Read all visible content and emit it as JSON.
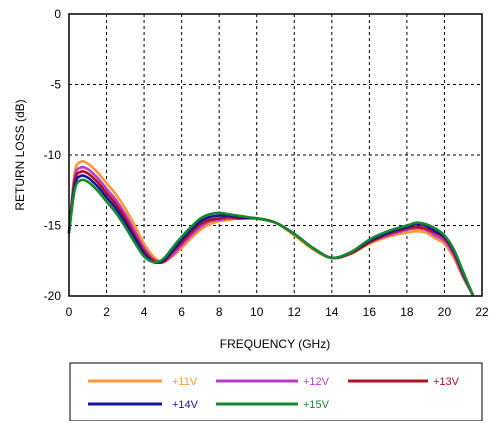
{
  "chart_data": {
    "type": "line",
    "xlabel": "FREQUENCY (GHz)",
    "ylabel": "RETURN LOSS (dB)",
    "xlim": [
      0,
      22
    ],
    "ylim": [
      -20,
      0
    ],
    "x_ticks": [
      "0",
      "2",
      "4",
      "6",
      "8",
      "10",
      "12",
      "14",
      "16",
      "18",
      "20",
      "22"
    ],
    "y_ticks": [
      "0",
      "-5",
      "-10",
      "-15",
      "-20"
    ],
    "grid": "dashed",
    "legend_position": "bottom",
    "series": [
      {
        "name": "+11V",
        "color": "#ff9933",
        "x": [
          0,
          0.3,
          0.6,
          1,
          1.5,
          2,
          2.5,
          3,
          3.5,
          4,
          4.5,
          5,
          5.5,
          6,
          6.5,
          7,
          7.5,
          8,
          8.5,
          9,
          10,
          11,
          12,
          13,
          14,
          15,
          16,
          17,
          18,
          18.5,
          19,
          19.5,
          20,
          20.5,
          21,
          21.5
        ],
        "values": [
          -15.5,
          -11.3,
          -10.5,
          -10.6,
          -11.2,
          -12,
          -12.8,
          -13.8,
          -15,
          -16.3,
          -17.2,
          -17.6,
          -17.2,
          -16.6,
          -15.9,
          -15.3,
          -14.9,
          -14.7,
          -14.6,
          -14.5,
          -14.5,
          -14.8,
          -15.7,
          -16.7,
          -17.3,
          -17,
          -16.3,
          -15.8,
          -15.5,
          -15.4,
          -15.5,
          -15.9,
          -16.3,
          -17.3,
          -18.7,
          -19.9
        ]
      },
      {
        "name": "+12V",
        "color": "#b83cc8",
        "x": [
          0,
          0.3,
          0.6,
          1,
          1.5,
          2,
          2.5,
          3,
          3.5,
          4,
          4.5,
          5,
          5.5,
          6,
          6.5,
          7,
          7.5,
          8,
          8.5,
          9,
          10,
          11,
          12,
          13,
          14,
          15,
          16,
          17,
          18,
          18.5,
          19,
          19.5,
          20,
          20.5,
          21,
          21.5
        ],
        "values": [
          -15.5,
          -11.6,
          -10.9,
          -11,
          -11.6,
          -12.4,
          -13.2,
          -14.2,
          -15.4,
          -16.6,
          -17.4,
          -17.6,
          -17.1,
          -16.4,
          -15.7,
          -15.1,
          -14.7,
          -14.6,
          -14.5,
          -14.5,
          -14.5,
          -14.8,
          -15.6,
          -16.6,
          -17.3,
          -17,
          -16.2,
          -15.7,
          -15.3,
          -15.2,
          -15.3,
          -15.7,
          -16.1,
          -17.1,
          -18.6,
          -19.9
        ]
      },
      {
        "name": "+13V",
        "color": "#b01020",
        "x": [
          0,
          0.3,
          0.6,
          1,
          1.5,
          2,
          2.5,
          3,
          3.5,
          4,
          4.5,
          5,
          5.5,
          6,
          6.5,
          7,
          7.5,
          8,
          8.5,
          9,
          10,
          11,
          12,
          13,
          14,
          15,
          16,
          17,
          18,
          18.5,
          19,
          19.5,
          20,
          20.5,
          21,
          21.5
        ],
        "values": [
          -15.5,
          -11.9,
          -11.2,
          -11.3,
          -11.9,
          -12.7,
          -13.5,
          -14.5,
          -15.7,
          -16.8,
          -17.5,
          -17.6,
          -16.9,
          -16.2,
          -15.5,
          -14.9,
          -14.6,
          -14.5,
          -14.4,
          -14.5,
          -14.5,
          -14.8,
          -15.6,
          -16.6,
          -17.3,
          -17,
          -16.2,
          -15.6,
          -15.2,
          -15.1,
          -15.2,
          -15.5,
          -15.9,
          -16.9,
          -18.5,
          -19.9
        ]
      },
      {
        "name": "+14V",
        "color": "#1414a0",
        "x": [
          0,
          0.3,
          0.6,
          1,
          1.5,
          2,
          2.5,
          3,
          3.5,
          4,
          4.5,
          5,
          5.5,
          6,
          6.5,
          7,
          7.5,
          8,
          8.5,
          9,
          10,
          11,
          12,
          13,
          14,
          15,
          16,
          17,
          18,
          18.5,
          19,
          19.5,
          20,
          20.5,
          21,
          21.5
        ],
        "values": [
          -15.5,
          -12.2,
          -11.5,
          -11.6,
          -12.2,
          -13,
          -13.8,
          -14.8,
          -15.9,
          -17,
          -17.6,
          -17.5,
          -16.8,
          -16,
          -15.3,
          -14.7,
          -14.4,
          -14.3,
          -14.3,
          -14.4,
          -14.5,
          -14.8,
          -15.6,
          -16.6,
          -17.3,
          -16.9,
          -16.1,
          -15.5,
          -15.1,
          -14.9,
          -15,
          -15.4,
          -15.8,
          -16.8,
          -18.4,
          -19.9
        ]
      },
      {
        "name": "+15V",
        "color": "#138a2c",
        "x": [
          0,
          0.3,
          0.6,
          1,
          1.5,
          2,
          2.5,
          3,
          3.5,
          4,
          4.5,
          5,
          5.5,
          6,
          6.5,
          7,
          7.5,
          8,
          8.5,
          9,
          10,
          11,
          12,
          13,
          14,
          15,
          16,
          17,
          18,
          18.5,
          19,
          19.5,
          20,
          20.5,
          21,
          21.5
        ],
        "values": [
          -15.5,
          -12.5,
          -11.8,
          -11.9,
          -12.5,
          -13.3,
          -14.1,
          -15.1,
          -16.2,
          -17.2,
          -17.6,
          -17.4,
          -16.6,
          -15.8,
          -15.1,
          -14.5,
          -14.2,
          -14.1,
          -14.2,
          -14.3,
          -14.5,
          -14.8,
          -15.6,
          -16.6,
          -17.3,
          -16.9,
          -16,
          -15.4,
          -15,
          -14.8,
          -14.9,
          -15.2,
          -15.7,
          -16.7,
          -18.3,
          -19.9
        ]
      }
    ]
  }
}
